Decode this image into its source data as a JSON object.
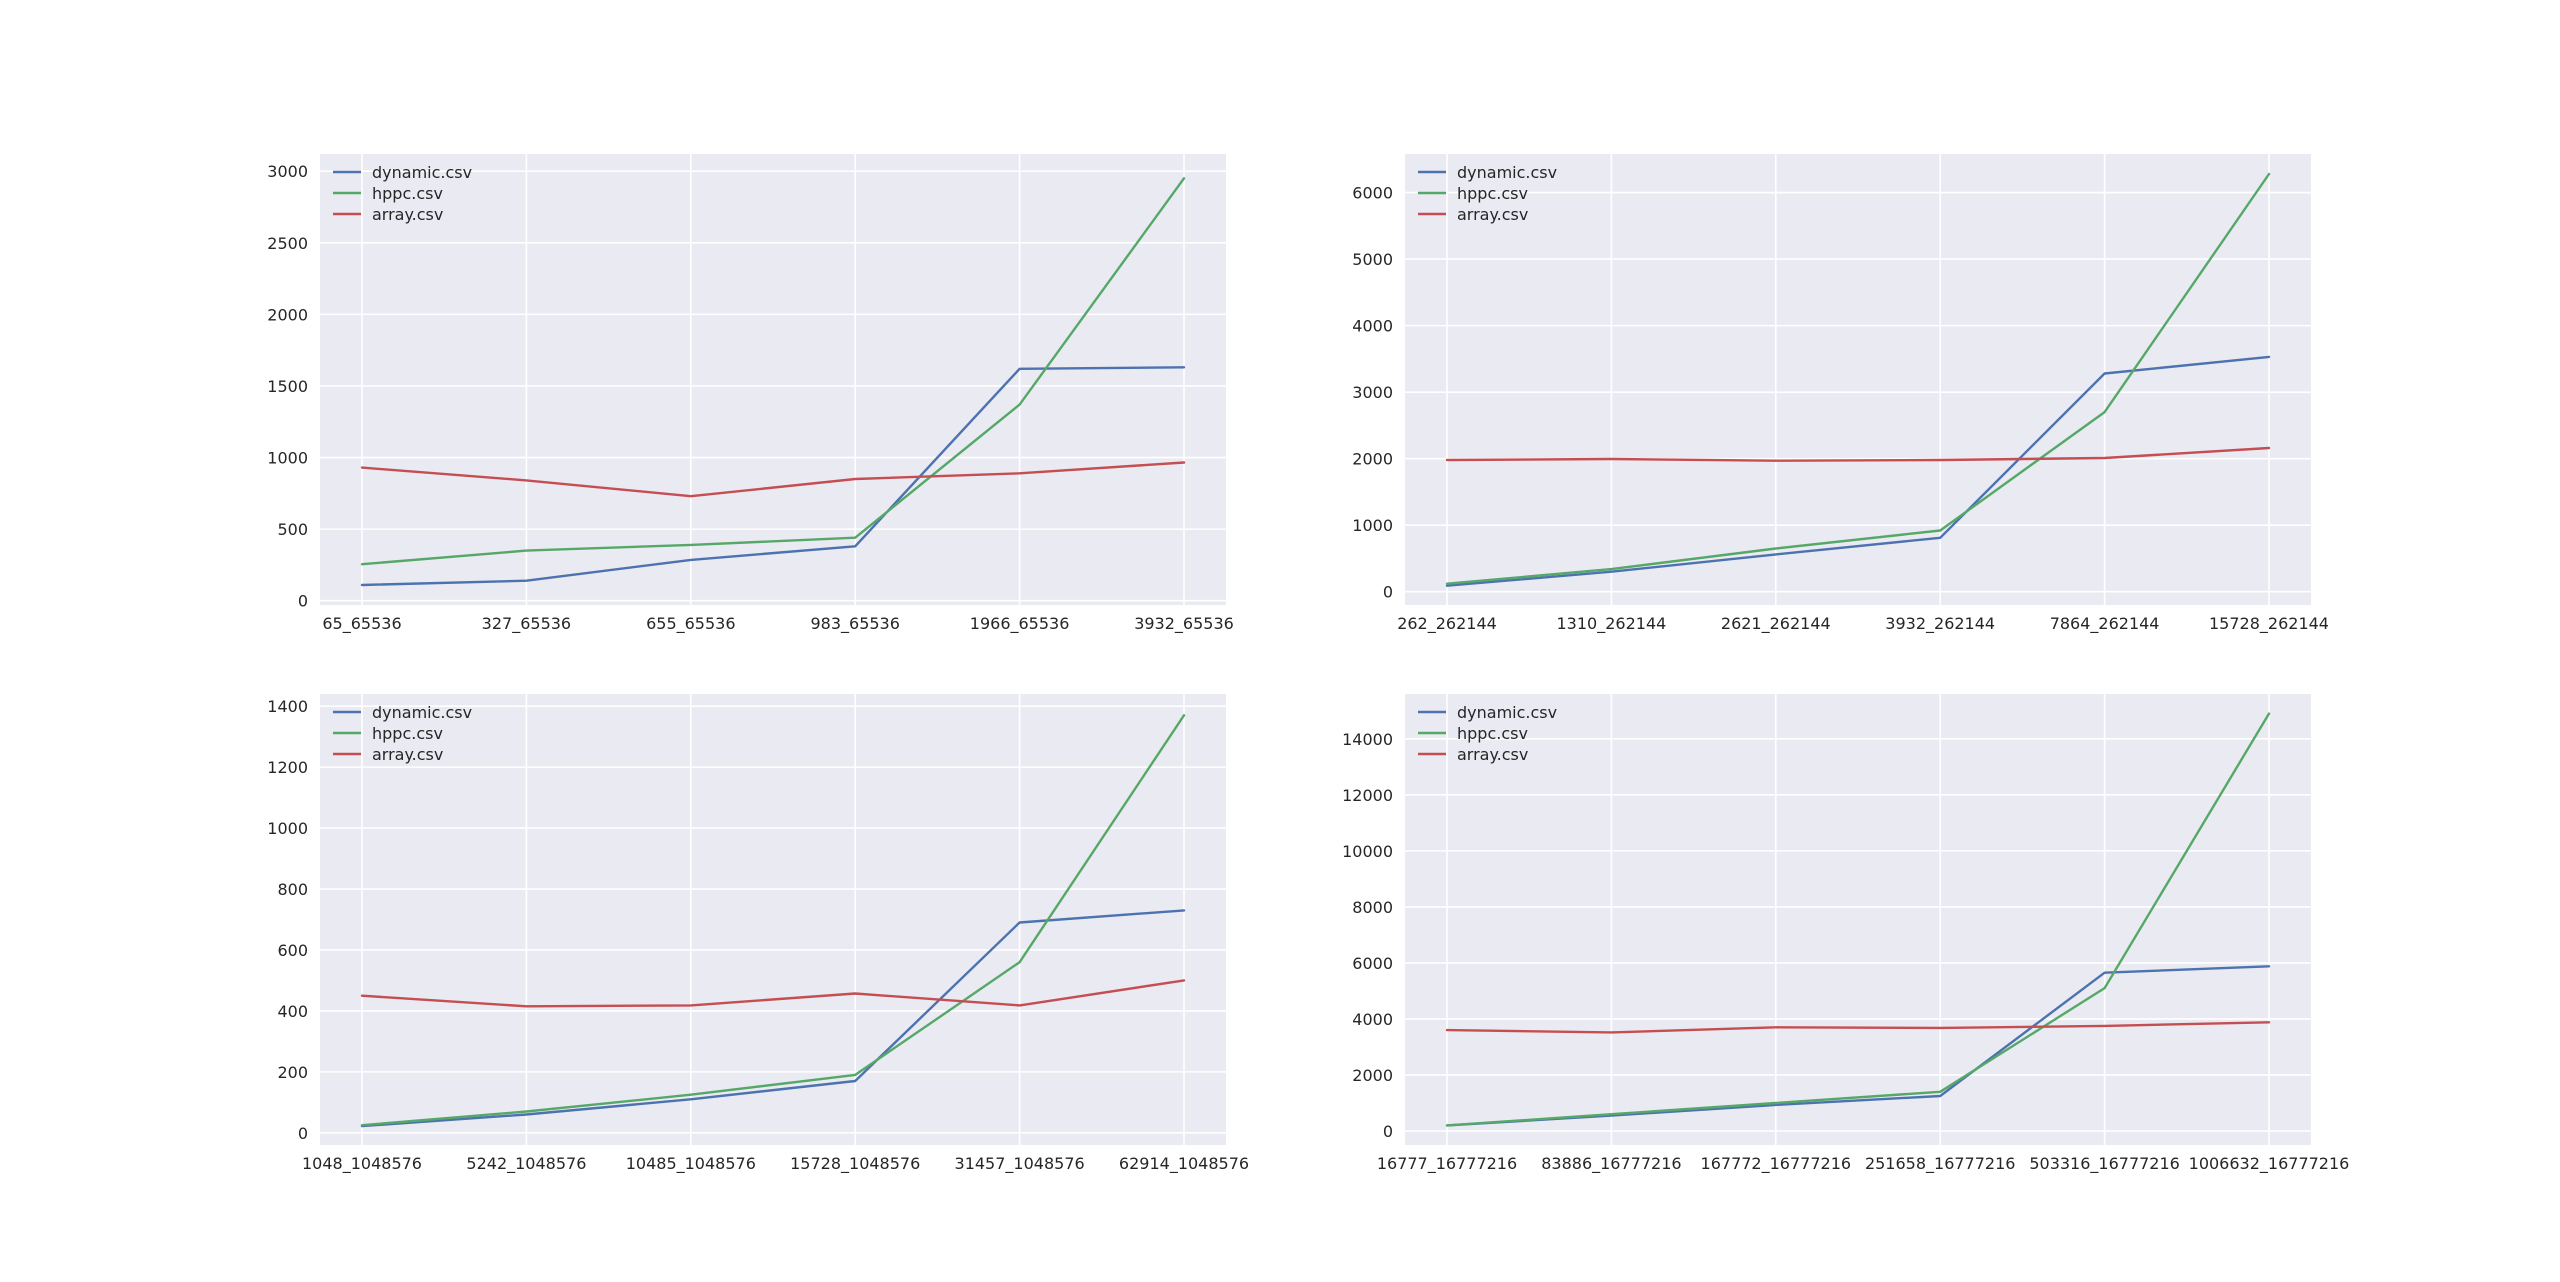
{
  "chart_data": [
    {
      "type": "line",
      "title": "",
      "xlabel": "",
      "ylabel": "",
      "grid": true,
      "legend_position": "top-left",
      "categories": [
        "65_65536",
        "327_65536",
        "655_65536",
        "983_65536",
        "1966_65536",
        "3932_65536"
      ],
      "ylim": [
        -30,
        3120
      ],
      "yticks": [
        0,
        500,
        1000,
        1500,
        2000,
        2500,
        3000
      ],
      "series": [
        {
          "name": "dynamic.csv",
          "color": "#4c72b0",
          "values": [
            110,
            140,
            285,
            380,
            1620,
            1630
          ]
        },
        {
          "name": "hppc.csv",
          "color": "#55a868",
          "values": [
            255,
            350,
            390,
            440,
            1370,
            2950
          ]
        },
        {
          "name": "array.csv",
          "color": "#c44e52",
          "values": [
            930,
            840,
            730,
            850,
            890,
            965
          ]
        }
      ]
    },
    {
      "type": "line",
      "title": "",
      "xlabel": "",
      "ylabel": "",
      "grid": true,
      "legend_position": "top-left",
      "categories": [
        "262_262144",
        "1310_262144",
        "2621_262144",
        "3932_262144",
        "7864_262144",
        "15728_262144"
      ],
      "ylim": [
        -200,
        6580
      ],
      "yticks": [
        0,
        1000,
        2000,
        3000,
        4000,
        5000,
        6000
      ],
      "series": [
        {
          "name": "dynamic.csv",
          "color": "#4c72b0",
          "values": [
            90,
            300,
            560,
            810,
            3280,
            3530
          ]
        },
        {
          "name": "hppc.csv",
          "color": "#55a868",
          "values": [
            120,
            340,
            650,
            920,
            2700,
            6280
          ]
        },
        {
          "name": "array.csv",
          "color": "#c44e52",
          "values": [
            1980,
            1995,
            1970,
            1980,
            2010,
            2160
          ]
        }
      ]
    },
    {
      "type": "line",
      "title": "",
      "xlabel": "",
      "ylabel": "",
      "grid": true,
      "legend_position": "top-left",
      "categories": [
        "1048_1048576",
        "5242_1048576",
        "10485_1048576",
        "15728_1048576",
        "31457_1048576",
        "62914_1048576"
      ],
      "ylim": [
        -40,
        1440
      ],
      "yticks": [
        0,
        200,
        400,
        600,
        800,
        1000,
        1200,
        1400
      ],
      "series": [
        {
          "name": "dynamic.csv",
          "color": "#4c72b0",
          "values": [
            22,
            60,
            110,
            170,
            690,
            730
          ]
        },
        {
          "name": "hppc.csv",
          "color": "#55a868",
          "values": [
            25,
            70,
            125,
            190,
            560,
            1370
          ]
        },
        {
          "name": "array.csv",
          "color": "#c44e52",
          "values": [
            450,
            415,
            418,
            457,
            418,
            500
          ]
        }
      ]
    },
    {
      "type": "line",
      "title": "",
      "xlabel": "",
      "ylabel": "",
      "grid": true,
      "legend_position": "top-left",
      "categories": [
        "16777_16777216",
        "83886_16777216",
        "167772_16777216",
        "251658_16777216",
        "503316_16777216",
        "1006632_16777216"
      ],
      "ylim": [
        -500,
        15600
      ],
      "yticks": [
        0,
        2000,
        4000,
        6000,
        8000,
        10000,
        12000,
        14000
      ],
      "series": [
        {
          "name": "dynamic.csv",
          "color": "#4c72b0",
          "values": [
            200,
            550,
            930,
            1250,
            5650,
            5880
          ]
        },
        {
          "name": "hppc.csv",
          "color": "#55a868",
          "values": [
            200,
            600,
            1000,
            1400,
            5100,
            14900
          ]
        },
        {
          "name": "array.csv",
          "color": "#c44e52",
          "values": [
            3600,
            3520,
            3700,
            3680,
            3750,
            3880
          ]
        }
      ]
    }
  ]
}
